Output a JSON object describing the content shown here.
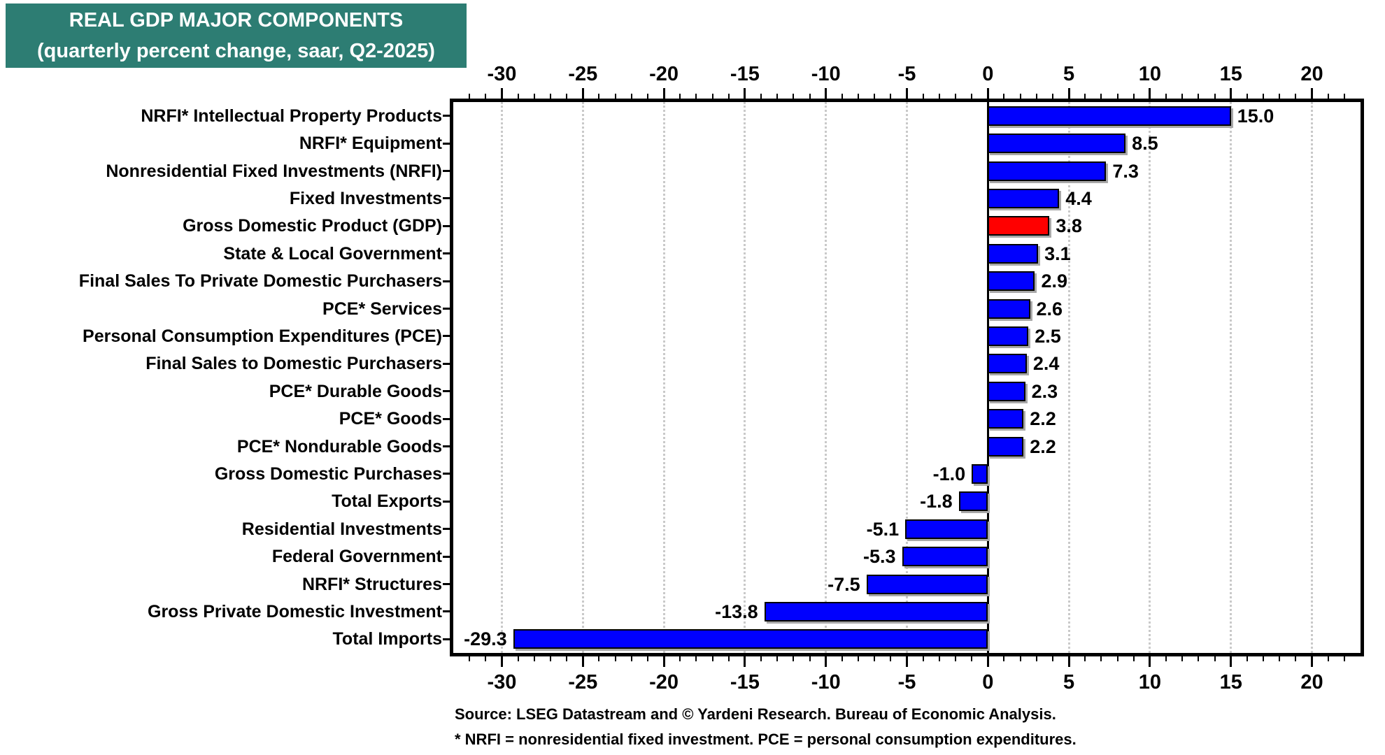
{
  "colors": {
    "header_bg": "#2D7D73",
    "header_text": "#FFFFFF",
    "bar": "#0000FE",
    "bar_highlight": "#FF0000",
    "gridline": "#C9C9C9",
    "axis": "#000000",
    "bar_shadow": "#A8A8A8"
  },
  "title": {
    "line1": "REAL GDP MAJOR COMPONENTS",
    "line2": "(quarterly percent change, saar, Q2-2025)"
  },
  "footer": {
    "line1": "Source: LSEG Datastream and © Yardeni Research. Bureau of Economic Analysis.",
    "line2": "* NRFI = nonresidential fixed investment. PCE = personal consumption expenditures."
  },
  "chart_data": {
    "type": "bar",
    "orientation": "horizontal",
    "title": "REAL GDP MAJOR COMPONENTS",
    "subtitle": "(quarterly percent change, saar, Q2-2025)",
    "categories": [
      "NRFI* Intellectual Property Products",
      "NRFI* Equipment",
      "Nonresidential Fixed Investments (NRFI)",
      "Fixed Investments",
      "Gross Domestic Product (GDP)",
      "State & Local Government",
      "Final Sales To Private Domestic Purchasers",
      "PCE* Services",
      "Personal Consumption Expenditures (PCE)",
      "Final Sales to Domestic Purchasers",
      "PCE* Durable Goods",
      "PCE* Goods",
      "PCE* Nondurable Goods",
      "Gross Domestic Purchases",
      "Total Exports",
      "Residential Investments",
      "Federal Government",
      "NRFI* Structures",
      "Gross Private Domestic Investment",
      "Total Imports"
    ],
    "values": [
      15.0,
      8.5,
      7.3,
      4.4,
      3.8,
      3.1,
      2.9,
      2.6,
      2.5,
      2.4,
      2.3,
      2.2,
      2.2,
      -1.0,
      -1.8,
      -5.1,
      -5.3,
      -7.5,
      -13.8,
      -29.3
    ],
    "value_labels": [
      "15.0",
      "8.5",
      "7.3",
      "4.4",
      "3.8",
      "3.1",
      "2.9",
      "2.6",
      "2.5",
      "2.4",
      "2.3",
      "2.2",
      "2.2",
      "-1.0",
      "-1.8",
      "-5.1",
      "-5.3",
      "-7.5",
      "-13.8",
      "-29.3"
    ],
    "highlight_index": 4,
    "xlim": [
      -33,
      23
    ],
    "xticks": [
      -30,
      -25,
      -20,
      -15,
      -10,
      -5,
      0,
      5,
      10,
      15,
      20
    ],
    "minor_tick_step": 1,
    "minor_tick_range": [
      -32,
      22
    ],
    "grid": "vertical-dotted",
    "legend": "none",
    "axis_labels_position": "top-and-bottom"
  }
}
